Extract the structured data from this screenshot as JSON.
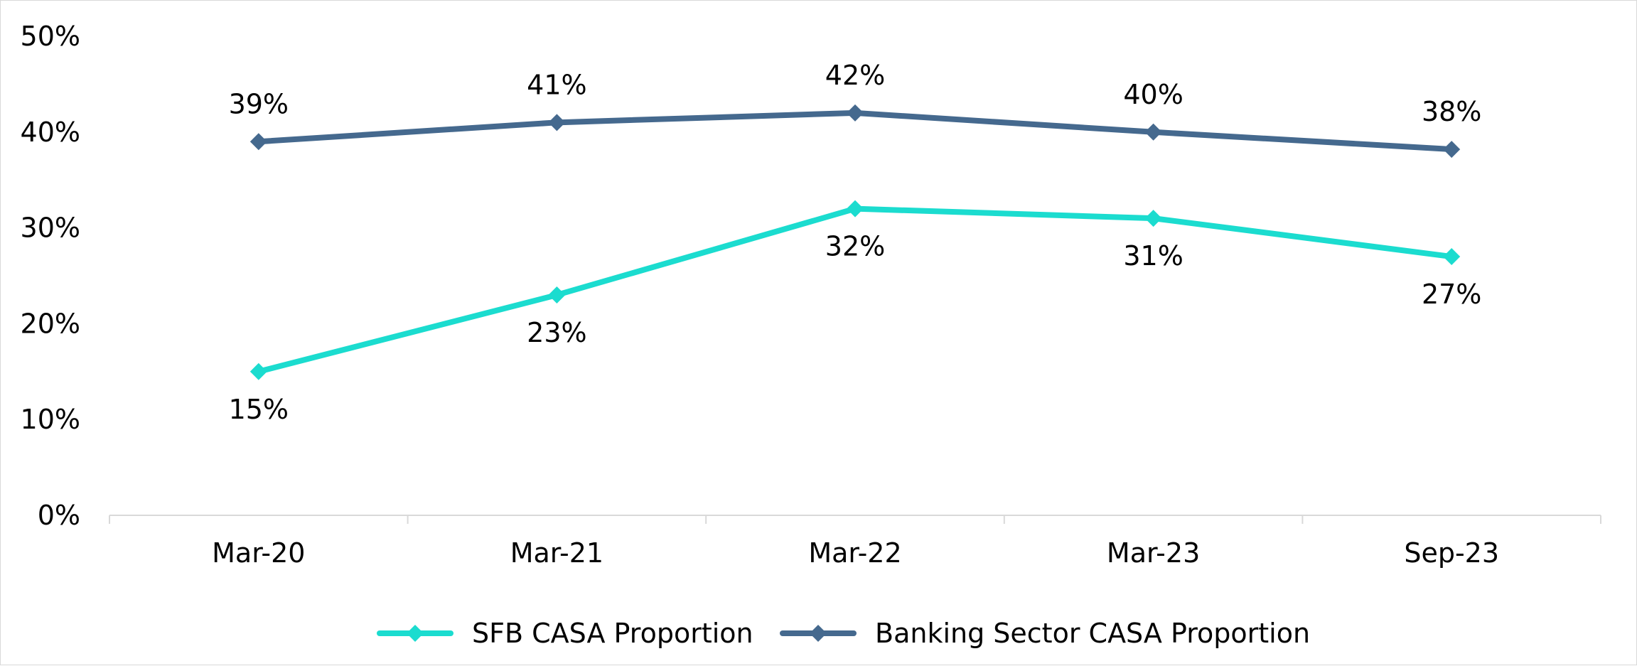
{
  "chart_data": {
    "type": "line",
    "categories": [
      "Mar-20",
      "Mar-21",
      "Mar-22",
      "Mar-23",
      "Sep-23"
    ],
    "series": [
      {
        "name": "SFB CASA Proportion",
        "values": [
          15,
          23,
          32,
          31,
          27
        ],
        "labels": [
          "15%",
          "23%",
          "32%",
          "31%",
          "27%"
        ],
        "color": "#1bdccf",
        "label_position": "below"
      },
      {
        "name": "Banking Sector CASA Proportion",
        "values": [
          39,
          41,
          42,
          40,
          38.2
        ],
        "labels": [
          "39%",
          "41%",
          "42%",
          "40%",
          "38%"
        ],
        "color": "#45698e",
        "label_position": "above"
      }
    ],
    "ylim": [
      0,
      50
    ],
    "yticks": [
      0,
      10,
      20,
      30,
      40,
      50
    ],
    "ytick_labels": [
      "0%",
      "10%",
      "20%",
      "30%",
      "40%",
      "50%"
    ],
    "marker": "diamond",
    "grid": false,
    "legend_position": "bottom",
    "axis_color": "#d9d9d9"
  }
}
